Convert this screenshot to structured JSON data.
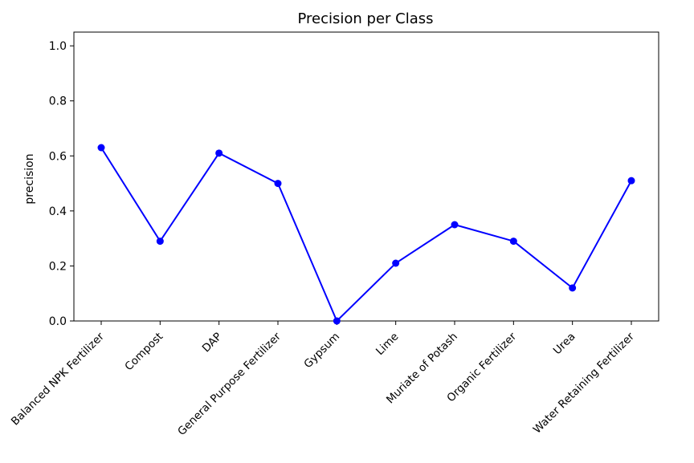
{
  "chart_data": {
    "type": "line",
    "title": "Precision per Class",
    "xlabel": "",
    "ylabel": "precision",
    "categories": [
      "Balanced NPK Fertilizer",
      "Compost",
      "DAP",
      "General Purpose Fertilizer",
      "Gypsum",
      "Lime",
      "Muriate of Potash",
      "Organic Fertilizer",
      "Urea",
      "Water Retaining Fertilizer"
    ],
    "values": [
      0.63,
      0.29,
      0.61,
      0.5,
      0.0,
      0.21,
      0.35,
      0.29,
      0.12,
      0.51
    ],
    "ylim": [
      0,
      1.05
    ],
    "yticks": [
      "0.0",
      "0.2",
      "0.4",
      "0.6",
      "0.8",
      "1.0"
    ],
    "grid": false,
    "line_color": "#0000ff",
    "marker": "circle"
  }
}
